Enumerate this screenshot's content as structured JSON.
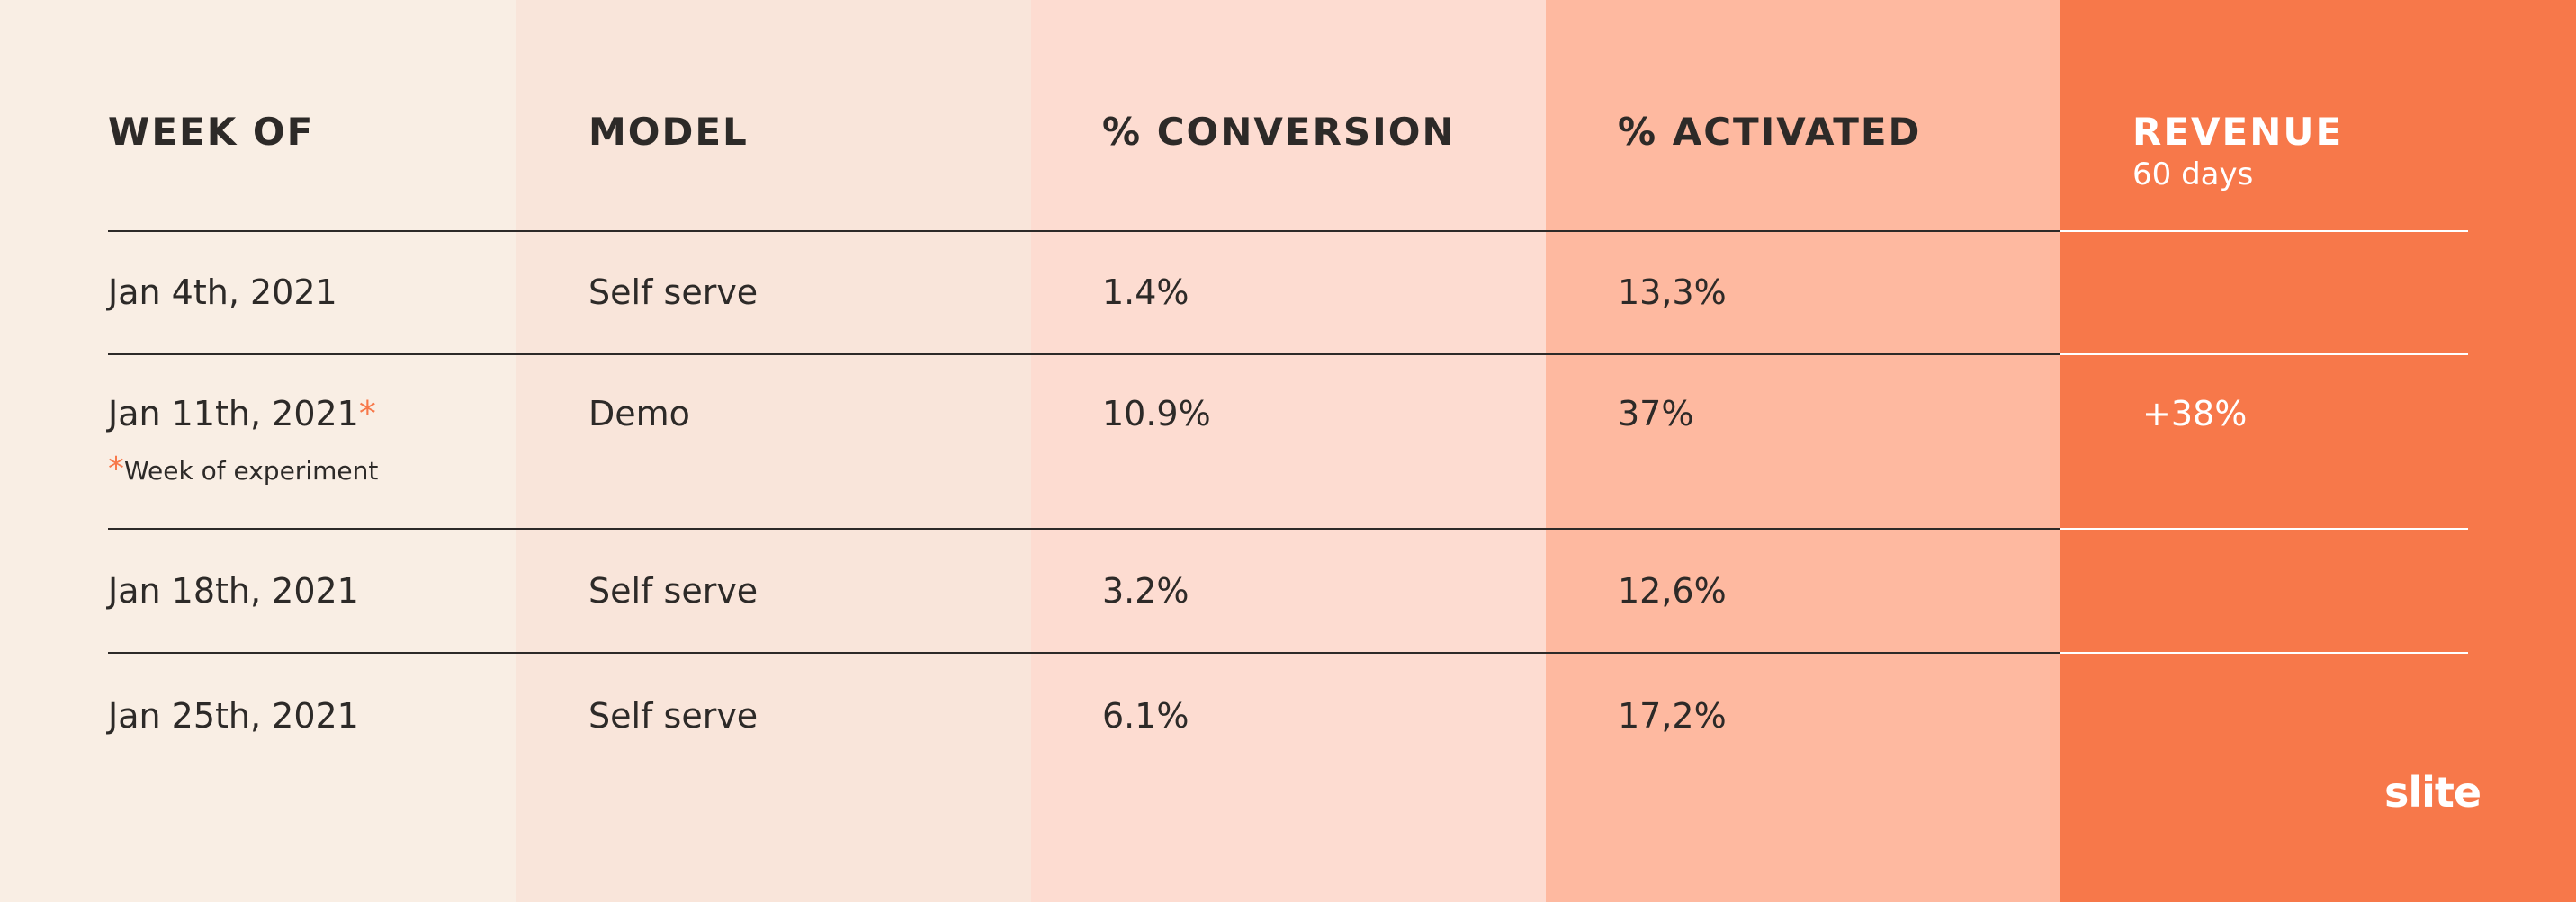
{
  "table": {
    "headers": [
      "WEEK OF",
      "MODEL",
      "% CONVERSION",
      "% ACTIVATED",
      "REVENUE"
    ],
    "revenue_subheader": "60 days",
    "rows": [
      {
        "week": "Jan 4th, 2021",
        "model": "Self serve",
        "conversion": "1.4%",
        "activated": "13,3%"
      },
      {
        "week": "Jan 11th, 2021",
        "model": "Demo",
        "conversion": "10.9%",
        "activated": "37%",
        "revenue": "+38%"
      },
      {
        "week": "Jan 18th, 2021",
        "model": "Self serve",
        "conversion": "3.2%",
        "activated": "12,6%"
      },
      {
        "week": "Jan 25th, 2021",
        "model": "Self serve",
        "conversion": "6.1%",
        "activated": "17,2%"
      }
    ],
    "footnote_marker": "*",
    "footnote": "Week of experiment"
  },
  "brand": "slite"
}
